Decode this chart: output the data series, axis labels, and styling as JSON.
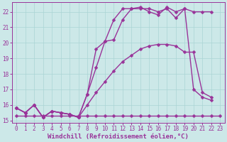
{
  "title": "",
  "xlabel": "Windchill (Refroidissement éolien,°C)",
  "ylabel": "",
  "bg_color": "#cce8e8",
  "grid_color": "#aad4d4",
  "line_color": "#993399",
  "xlim_min": -0.5,
  "xlim_max": 23.5,
  "ylim_min": 14.85,
  "ylim_max": 22.6,
  "xticks": [
    0,
    1,
    2,
    3,
    4,
    5,
    6,
    7,
    8,
    9,
    10,
    11,
    12,
    13,
    14,
    15,
    16,
    17,
    18,
    19,
    20,
    21,
    22,
    23
  ],
  "yticks": [
    15,
    16,
    17,
    18,
    19,
    20,
    21,
    22
  ],
  "line1_x": [
    0,
    1,
    2,
    3,
    4,
    5,
    6,
    7,
    8,
    9,
    10,
    11,
    12,
    13,
    14,
    15,
    16,
    17,
    18,
    19,
    20,
    21,
    22,
    23
  ],
  "line1_y": [
    15.3,
    15.3,
    15.3,
    15.3,
    15.3,
    15.3,
    15.3,
    15.3,
    15.3,
    15.3,
    15.3,
    15.3,
    15.3,
    15.3,
    15.3,
    15.3,
    15.3,
    15.3,
    15.3,
    15.3,
    15.3,
    15.3,
    15.3,
    15.3
  ],
  "line2_x": [
    0,
    1,
    2,
    3,
    4,
    5,
    6,
    7,
    8,
    9,
    10,
    11,
    12,
    13,
    14,
    15,
    16,
    17,
    18,
    19,
    20,
    21,
    22
  ],
  "line2_y": [
    15.8,
    15.5,
    16.0,
    15.2,
    15.6,
    15.5,
    15.4,
    15.2,
    16.0,
    16.8,
    17.5,
    18.2,
    18.8,
    19.2,
    19.6,
    19.8,
    19.9,
    19.9,
    19.8,
    19.4,
    19.4,
    16.8,
    16.5
  ],
  "line3_x": [
    0,
    1,
    2,
    3,
    4,
    5,
    6,
    7,
    8,
    9,
    10,
    11,
    12,
    13,
    14,
    15,
    16,
    17,
    18,
    19,
    20,
    21,
    22
  ],
  "line3_y": [
    15.8,
    15.5,
    16.0,
    15.2,
    15.6,
    15.5,
    15.4,
    15.2,
    16.7,
    18.4,
    20.1,
    20.2,
    21.5,
    22.2,
    22.2,
    22.2,
    22.0,
    22.2,
    21.6,
    22.2,
    22.0,
    22.0,
    22.0
  ],
  "line4_x": [
    0,
    1,
    2,
    3,
    4,
    5,
    6,
    7,
    8,
    9,
    10,
    11,
    12,
    13,
    14,
    15,
    16,
    17,
    18,
    19,
    20,
    21,
    22
  ],
  "line4_y": [
    15.8,
    15.5,
    16.0,
    15.2,
    15.6,
    15.5,
    15.4,
    15.2,
    16.7,
    19.6,
    20.1,
    21.5,
    22.2,
    22.2,
    22.3,
    22.0,
    21.8,
    22.3,
    22.0,
    22.2,
    17.0,
    16.5,
    16.3
  ],
  "marker_size": 2.5,
  "line_width": 1.0,
  "font_size_tick": 5.5,
  "font_size_label": 6.5
}
